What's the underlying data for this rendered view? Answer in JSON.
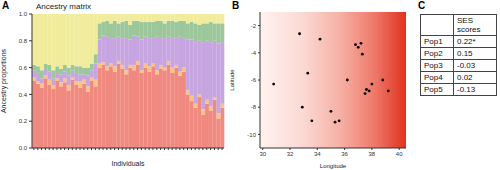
{
  "chart_data": [
    {
      "type": "bar",
      "title": "Ancestry matrix",
      "annotations": [
        "A"
      ],
      "x_label": "Individuals",
      "y_label": "Ancestry proportions",
      "stacked": true,
      "categories": [
        null,
        null,
        null,
        null,
        null,
        null,
        null,
        null,
        null,
        null,
        null,
        null,
        null,
        null,
        null,
        null,
        null,
        null,
        null,
        null,
        null,
        null,
        null,
        null,
        null,
        null,
        null,
        null,
        null,
        null,
        null,
        null,
        null,
        null,
        null,
        null,
        null,
        null,
        null,
        null,
        null,
        null,
        null,
        null,
        null,
        null,
        null,
        null,
        null,
        null
      ],
      "series": [
        {
          "color": "#f08a80",
          "values": [
            0.5,
            0.48,
            0.45,
            0.52,
            0.47,
            0.44,
            0.5,
            0.46,
            0.49,
            0.43,
            0.51,
            0.47,
            0.45,
            0.48,
            0.42,
            0.5,
            0.46,
            0.6,
            0.62,
            0.58,
            0.61,
            0.57,
            0.63,
            0.59,
            0.55,
            0.6,
            0.58,
            0.62,
            0.56,
            0.6,
            0.57,
            0.61,
            0.55,
            0.59,
            0.58,
            0.62,
            0.56,
            0.6,
            0.54,
            0.57,
            0.4,
            0.35,
            0.3,
            0.38,
            0.25,
            0.33,
            0.28,
            0.36,
            0.22,
            0.3
          ]
        },
        {
          "color": "#f6c38a",
          "values": [
            0.03,
            0.02,
            0.03,
            0.02,
            0.04,
            0.03,
            0.02,
            0.03,
            0.03,
            0.04,
            0.02,
            0.03,
            0.05,
            0.03,
            0.04,
            0.03,
            0.05,
            0.03,
            0.02,
            0.03,
            0.02,
            0.04,
            0.02,
            0.03,
            0.03,
            0.02,
            0.04,
            0.03,
            0.02,
            0.03,
            0.04,
            0.02,
            0.03,
            0.03,
            0.02,
            0.03,
            0.04,
            0.02,
            0.03,
            0.03,
            0.03,
            0.04,
            0.03,
            0.02,
            0.04,
            0.03,
            0.03,
            0.02,
            0.04,
            0.03
          ]
        },
        {
          "color": "#c7a5e0",
          "values": [
            0.05,
            0.06,
            0.04,
            0.05,
            0.06,
            0.05,
            0.04,
            0.06,
            0.05,
            0.07,
            0.05,
            0.06,
            0.05,
            0.04,
            0.08,
            0.05,
            0.12,
            0.18,
            0.2,
            0.22,
            0.19,
            0.21,
            0.18,
            0.2,
            0.24,
            0.19,
            0.22,
            0.18,
            0.23,
            0.2,
            0.21,
            0.19,
            0.25,
            0.2,
            0.22,
            0.18,
            0.22,
            0.2,
            0.26,
            0.22,
            0.38,
            0.42,
            0.46,
            0.4,
            0.5,
            0.44,
            0.48,
            0.42,
            0.52,
            0.46
          ]
        },
        {
          "color": "#9cc79a",
          "values": [
            0.04,
            0.05,
            0.06,
            0.04,
            0.05,
            0.06,
            0.05,
            0.04,
            0.05,
            0.06,
            0.04,
            0.05,
            0.06,
            0.05,
            0.06,
            0.05,
            0.07,
            0.12,
            0.1,
            0.12,
            0.11,
            0.13,
            0.1,
            0.12,
            0.13,
            0.11,
            0.11,
            0.12,
            0.13,
            0.11,
            0.12,
            0.12,
            0.12,
            0.13,
            0.11,
            0.12,
            0.13,
            0.12,
            0.12,
            0.13,
            0.12,
            0.13,
            0.14,
            0.12,
            0.14,
            0.13,
            0.15,
            0.13,
            0.15,
            0.14
          ]
        },
        {
          "color": "#f1ec9c",
          "values": [
            0.38,
            0.39,
            0.42,
            0.37,
            0.38,
            0.42,
            0.39,
            0.41,
            0.38,
            0.4,
            0.38,
            0.39,
            0.39,
            0.4,
            0.4,
            0.37,
            0.3,
            0.07,
            0.06,
            0.05,
            0.07,
            0.05,
            0.07,
            0.06,
            0.05,
            0.08,
            0.05,
            0.05,
            0.06,
            0.06,
            0.06,
            0.06,
            0.05,
            0.05,
            0.07,
            0.05,
            0.05,
            0.06,
            0.05,
            0.05,
            0.07,
            0.06,
            0.07,
            0.08,
            0.07,
            0.07,
            0.06,
            0.07,
            0.07,
            0.07
          ]
        }
      ],
      "ylim": [
        0,
        1
      ],
      "yticks": [
        {
          "value": 0,
          "label": "0.0"
        },
        0.2,
        0.4,
        0.6,
        0.8,
        {
          "value": 1,
          "label": "1.0"
        }
      ]
    },
    {
      "type": "scatter",
      "annotations": [
        "B"
      ],
      "x_label": "Longitude",
      "y_label": "Latitude",
      "color": "#000000",
      "x": [
        30.8,
        32.7,
        33.3,
        32.9,
        33.6,
        34.2,
        35.0,
        35.3,
        35.6,
        36.2,
        36.8,
        37.0,
        37.3,
        37.6,
        37.8,
        37.5,
        38.0,
        38.8,
        39.2,
        37.2
      ],
      "values": [
        -6.3,
        -2.6,
        -5.5,
        -8.0,
        -9.0,
        -3.0,
        -8.3,
        -9.1,
        -9.0,
        -6.0,
        -3.4,
        -3.6,
        -4.1,
        -6.7,
        -6.8,
        -7.0,
        -6.3,
        -6.0,
        -6.8,
        -3.3
      ],
      "xlim": [
        29.8,
        40.5
      ],
      "xticks": [
        30,
        32,
        34,
        36,
        38,
        40
      ],
      "ylim": [
        -11,
        -1
      ],
      "yticks": [
        -10,
        -8,
        -6,
        -4,
        -2
      ]
    }
  ],
  "table": {
    "panel": "C",
    "header": [
      "",
      "SES scores"
    ],
    "rows": [
      [
        "Pop1",
        "0.22*"
      ],
      [
        "Pop2",
        "0.15"
      ],
      [
        "Pop3",
        "-0.03"
      ],
      [
        "Pop4",
        "0.02"
      ],
      [
        "Pop5",
        "-0.13"
      ]
    ]
  }
}
